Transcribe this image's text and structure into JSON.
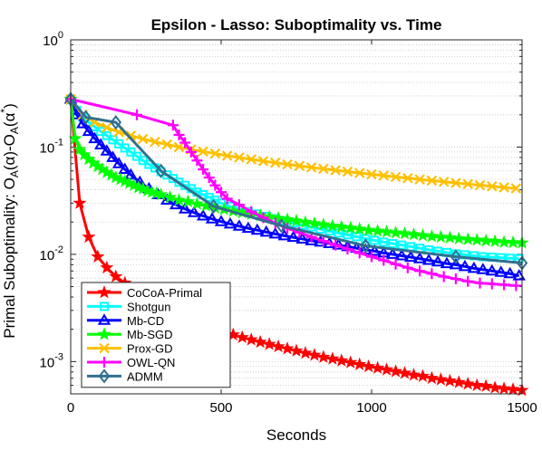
{
  "chart_data": {
    "type": "line",
    "title": "Epsilon - Lasso: Suboptimality vs. Time",
    "xlabel": "Seconds",
    "ylabel": "Primal Suboptimality: O_A(α)-O_A(α*)",
    "ylabel_parts": {
      "main": "Primal Suboptimality: O",
      "s1": "A",
      "m1": "(α)-O",
      "s2": "A",
      "m2": "(α",
      "sup": "*",
      "end": ")"
    },
    "xlim": [
      0,
      1500
    ],
    "ylim": [
      0.0005,
      1
    ],
    "yscale": "log",
    "grid": "horizontal-dotted",
    "legend_placement": "lower-left",
    "x_ticks": [
      "0",
      "500",
      "1000",
      "1500"
    ],
    "x_tick_values": [
      0,
      500,
      1000,
      1500
    ],
    "y_ticks": [
      {
        "value": 0.001,
        "base": "10",
        "exp": "-3"
      },
      {
        "value": 0.01,
        "base": "10",
        "exp": "-2"
      },
      {
        "value": 0.1,
        "base": "10",
        "exp": "-1"
      },
      {
        "value": 1,
        "base": "10",
        "exp": "0"
      }
    ],
    "series": [
      {
        "name": "CoCoA-Primal",
        "color": "#ff0000",
        "marker": "star",
        "x": [
          0,
          30,
          60,
          90,
          120,
          150,
          180,
          210,
          240,
          270,
          300,
          330,
          360,
          390,
          420,
          450,
          480,
          510,
          540,
          570,
          600,
          630,
          660,
          690,
          720,
          750,
          780,
          810,
          840,
          870,
          900,
          930,
          960,
          990,
          1020,
          1050,
          1080,
          1110,
          1140,
          1170,
          1200,
          1230,
          1260,
          1290,
          1320,
          1350,
          1380,
          1410,
          1440,
          1470,
          1500
        ],
        "y": [
          0.28,
          0.03,
          0.0145,
          0.0095,
          0.0075,
          0.0062,
          0.0054,
          0.0047,
          0.0042,
          0.0037,
          0.0033,
          0.003,
          0.0027,
          0.0025,
          0.0023,
          0.0022,
          0.002,
          0.0019,
          0.00178,
          0.00168,
          0.0016,
          0.00152,
          0.00145,
          0.00138,
          0.00132,
          0.00126,
          0.0012,
          0.00115,
          0.0011,
          0.00106,
          0.00102,
          0.00098,
          0.00094,
          0.0009,
          0.00087,
          0.00084,
          0.00081,
          0.00078,
          0.00075,
          0.00073,
          0.0007,
          0.00068,
          0.00066,
          0.00064,
          0.00062,
          0.0006,
          0.00059,
          0.00057,
          0.00056,
          0.00055,
          0.00054
        ]
      },
      {
        "name": "Shotgun",
        "color": "#00ffff",
        "marker": "square",
        "x": [
          0,
          20,
          40,
          60,
          80,
          100,
          120,
          140,
          160,
          180,
          200,
          220,
          240,
          260,
          280,
          300,
          320,
          340,
          360,
          380,
          400,
          420,
          440,
          460,
          480,
          500,
          530,
          560,
          590,
          620,
          650,
          680,
          710,
          740,
          770,
          800,
          830,
          860,
          890,
          920,
          950,
          980,
          1010,
          1040,
          1070,
          1100,
          1130,
          1160,
          1190,
          1220,
          1250,
          1280,
          1310,
          1340,
          1370,
          1400,
          1430,
          1460,
          1490
        ],
        "y": [
          0.28,
          0.22,
          0.19,
          0.17,
          0.155,
          0.14,
          0.128,
          0.117,
          0.107,
          0.098,
          0.09,
          0.082,
          0.075,
          0.069,
          0.064,
          0.059,
          0.055,
          0.051,
          0.047,
          0.044,
          0.041,
          0.038,
          0.036,
          0.034,
          0.032,
          0.03,
          0.028,
          0.0265,
          0.025,
          0.0238,
          0.0226,
          0.0215,
          0.0205,
          0.0196,
          0.0187,
          0.018,
          0.0172,
          0.0165,
          0.0158,
          0.0152,
          0.0146,
          0.014,
          0.0135,
          0.013,
          0.0126,
          0.0122,
          0.0118,
          0.0114,
          0.011,
          0.0107,
          0.0104,
          0.0101,
          0.0099,
          0.0097,
          0.0095,
          0.0094,
          0.0093,
          0.0092,
          0.0091
        ]
      },
      {
        "name": "Mb-CD",
        "color": "#0000ff",
        "marker": "triangle",
        "x": [
          0,
          20,
          40,
          60,
          80,
          100,
          120,
          140,
          160,
          180,
          200,
          230,
          260,
          290,
          320,
          350,
          380,
          410,
          440,
          470,
          500,
          530,
          560,
          590,
          620,
          650,
          680,
          710,
          740,
          770,
          800,
          830,
          860,
          890,
          920,
          950,
          980,
          1010,
          1040,
          1070,
          1100,
          1130,
          1160,
          1190,
          1220,
          1250,
          1280,
          1310,
          1340,
          1370,
          1400,
          1430,
          1460,
          1490
        ],
        "y": [
          0.28,
          0.2,
          0.165,
          0.14,
          0.12,
          0.105,
          0.092,
          0.08,
          0.07,
          0.062,
          0.055,
          0.047,
          0.041,
          0.036,
          0.032,
          0.029,
          0.0265,
          0.0245,
          0.0228,
          0.0214,
          0.0202,
          0.0192,
          0.0183,
          0.0175,
          0.0168,
          0.0161,
          0.0155,
          0.0149,
          0.0144,
          0.0139,
          0.0134,
          0.013,
          0.0126,
          0.0122,
          0.0118,
          0.0114,
          0.011,
          0.0107,
          0.0103,
          0.01,
          0.0097,
          0.0094,
          0.0091,
          0.0088,
          0.0085,
          0.0082,
          0.008,
          0.0077,
          0.0074,
          0.0072,
          0.007,
          0.0068,
          0.0066,
          0.0063
        ]
      },
      {
        "name": "Mb-SGD",
        "color": "#00ff00",
        "marker": "star",
        "x": [
          0,
          15,
          30,
          45,
          60,
          75,
          90,
          105,
          120,
          135,
          150,
          165,
          180,
          195,
          210,
          225,
          240,
          255,
          270,
          285,
          300,
          330,
          360,
          390,
          420,
          450,
          480,
          510,
          540,
          570,
          600,
          630,
          660,
          690,
          720,
          750,
          780,
          810,
          840,
          870,
          900,
          930,
          960,
          990,
          1020,
          1050,
          1080,
          1110,
          1140,
          1170,
          1200,
          1230,
          1260,
          1290,
          1320,
          1350,
          1380,
          1410,
          1440,
          1470,
          1500
        ],
        "y": [
          0.28,
          0.12,
          0.095,
          0.085,
          0.077,
          0.071,
          0.066,
          0.062,
          0.058,
          0.055,
          0.052,
          0.05,
          0.048,
          0.046,
          0.044,
          0.042,
          0.041,
          0.039,
          0.038,
          0.037,
          0.036,
          0.034,
          0.032,
          0.031,
          0.0295,
          0.0283,
          0.0272,
          0.0262,
          0.0253,
          0.0245,
          0.0237,
          0.023,
          0.0223,
          0.0217,
          0.0211,
          0.0205,
          0.0199,
          0.0194,
          0.0189,
          0.0184,
          0.018,
          0.0176,
          0.0172,
          0.0168,
          0.0165,
          0.0162,
          0.0159,
          0.0156,
          0.0153,
          0.015,
          0.0147,
          0.0145,
          0.0143,
          0.014,
          0.0138,
          0.0136,
          0.0134,
          0.0132,
          0.013,
          0.0129,
          0.0128
        ]
      },
      {
        "name": "Prox-GD",
        "color": "#ffc000",
        "marker": "x",
        "x": [
          0,
          40,
          80,
          120,
          160,
          200,
          240,
          280,
          320,
          360,
          400,
          440,
          480,
          520,
          560,
          600,
          640,
          680,
          720,
          760,
          800,
          840,
          880,
          920,
          960,
          1000,
          1040,
          1080,
          1120,
          1160,
          1200,
          1240,
          1280,
          1320,
          1360,
          1400,
          1440,
          1480
        ],
        "y": [
          0.28,
          0.2,
          0.17,
          0.152,
          0.138,
          0.128,
          0.119,
          0.112,
          0.106,
          0.1,
          0.095,
          0.091,
          0.087,
          0.083,
          0.08,
          0.077,
          0.074,
          0.0715,
          0.069,
          0.0668,
          0.0647,
          0.0627,
          0.0608,
          0.059,
          0.0573,
          0.0557,
          0.0542,
          0.0527,
          0.0513,
          0.05,
          0.0487,
          0.0475,
          0.0463,
          0.0452,
          0.0441,
          0.0431,
          0.0421,
          0.0412
        ]
      },
      {
        "name": "OWL-QN",
        "color": "#ff00ff",
        "marker": "plus",
        "x": [
          0,
          220,
          340,
          360,
          380,
          400,
          420,
          440,
          460,
          480,
          500,
          520,
          560,
          600,
          640,
          680,
          720,
          760,
          800,
          840,
          880,
          920,
          960,
          1000,
          1040,
          1080,
          1120,
          1160,
          1200,
          1240,
          1280,
          1320,
          1360,
          1400,
          1440,
          1480
        ],
        "y": [
          0.28,
          0.2,
          0.16,
          0.13,
          0.11,
          0.09,
          0.075,
          0.062,
          0.052,
          0.044,
          0.038,
          0.033,
          0.029,
          0.025,
          0.022,
          0.0195,
          0.0175,
          0.016,
          0.0145,
          0.0133,
          0.0122,
          0.0112,
          0.0103,
          0.0095,
          0.0088,
          0.0081,
          0.0075,
          0.007,
          0.0066,
          0.0062,
          0.0059,
          0.0056,
          0.0054,
          0.0053,
          0.0052,
          0.0051
        ]
      },
      {
        "name": "ADMM",
        "color": "#31708f",
        "marker": "diamond",
        "x": [
          0,
          50,
          150,
          300,
          475,
          700,
          980,
          1280,
          1500
        ],
        "y": [
          0.28,
          0.19,
          0.17,
          0.06,
          0.028,
          0.0185,
          0.012,
          0.0095,
          0.0083
        ]
      }
    ]
  }
}
